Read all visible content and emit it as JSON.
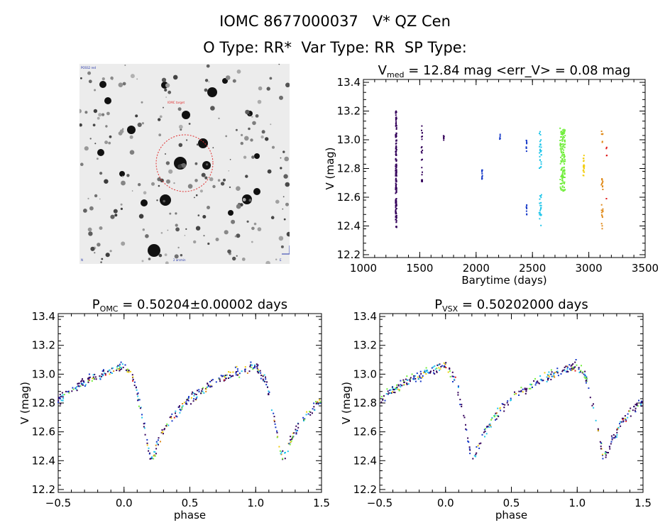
{
  "header": {
    "title": "IOMC 8677000037   V* QZ Cen",
    "subtitle": "O Type: RR*  Var Type: RR  SP Type:"
  },
  "colors": {
    "series": [
      "#33005a",
      "#1538c8",
      "#22c6ea",
      "#72ee3c",
      "#f2cd0e",
      "#e08a1a",
      "#e01c1c"
    ],
    "circle": "#e03030"
  },
  "image_panel": {
    "label_top_left": "POSS2 red",
    "label_marker": "IOMC target",
    "label_bottom_left": "N",
    "label_bottom_center": "2 arcmin",
    "label_bottom_right": "E"
  },
  "chart_data": [
    {
      "id": "lightcurve",
      "type": "scatter",
      "title_main": "V",
      "title_sub": "med",
      "title_rest": " = 12.84 mag <err_V> = 0.08 mag",
      "xlabel": "Barytime (days)",
      "ylabel": "V (mag)",
      "xlim": [
        1000,
        3500
      ],
      "ylim": [
        13.42,
        12.18
      ],
      "xticks": [
        "1000",
        "1500",
        "2000",
        "2500",
        "3000",
        "3500"
      ],
      "yticks": [
        "12.2",
        "12.4",
        "12.6",
        "12.8",
        "13.0",
        "13.2",
        "13.4"
      ],
      "groups": [
        {
          "name": "season 1",
          "color_index": 0,
          "x_range": [
            1285,
            1295
          ],
          "y_range": [
            12.38,
            13.2
          ],
          "n": 150
        },
        {
          "name": "season 2",
          "color_index": 0,
          "x_range": [
            1515,
            1525
          ],
          "y_range": [
            12.7,
            13.1
          ],
          "n": 22
        },
        {
          "name": "season 3",
          "color_index": 0,
          "x_range": [
            1710,
            1716
          ],
          "y_range": [
            12.98,
            13.03
          ],
          "n": 6
        },
        {
          "name": "season 4",
          "color_index": 1,
          "x_range": [
            2050,
            2056
          ],
          "y_range": [
            12.72,
            12.85
          ],
          "n": 10
        },
        {
          "name": "season 5",
          "color_index": 1,
          "x_range": [
            2210,
            2214
          ],
          "y_range": [
            12.97,
            13.04
          ],
          "n": 5
        },
        {
          "name": "season 6a",
          "color_index": 1,
          "x_range": [
            2445,
            2450
          ],
          "y_range": [
            12.45,
            12.55
          ],
          "n": 8
        },
        {
          "name": "season 6b",
          "color_index": 1,
          "x_range": [
            2445,
            2450
          ],
          "y_range": [
            12.92,
            13.0
          ],
          "n": 8
        },
        {
          "name": "season 7a",
          "color_index": 2,
          "x_range": [
            2560,
            2580
          ],
          "y_range": [
            12.4,
            12.62
          ],
          "n": 22
        },
        {
          "name": "season 7b",
          "color_index": 2,
          "x_range": [
            2560,
            2580
          ],
          "y_range": [
            12.8,
            13.08
          ],
          "n": 26
        },
        {
          "name": "season 8",
          "color_index": 3,
          "x_range": [
            2745,
            2790
          ],
          "y_range": [
            12.64,
            13.08
          ],
          "n": 140
        },
        {
          "name": "season 9",
          "color_index": 4,
          "x_range": [
            2950,
            2960
          ],
          "y_range": [
            12.75,
            12.9
          ],
          "n": 20
        },
        {
          "name": "season 10a",
          "color_index": 5,
          "x_range": [
            3110,
            3125
          ],
          "y_range": [
            12.38,
            12.55
          ],
          "n": 12
        },
        {
          "name": "season 10b",
          "color_index": 5,
          "x_range": [
            3110,
            3125
          ],
          "y_range": [
            12.63,
            12.75
          ],
          "n": 10
        },
        {
          "name": "season 10c",
          "color_index": 5,
          "x_range": [
            3110,
            3125
          ],
          "y_range": [
            12.97,
            13.06
          ],
          "n": 6
        },
        {
          "name": "season 11a",
          "color_index": 6,
          "x_range": [
            3155,
            3160
          ],
          "y_range": [
            12.57,
            12.6
          ],
          "n": 2
        },
        {
          "name": "season 11b",
          "color_index": 6,
          "x_range": [
            3155,
            3160
          ],
          "y_range": [
            12.88,
            12.96
          ],
          "n": 4
        }
      ]
    },
    {
      "id": "phase-omc",
      "type": "scatter",
      "title_main": "P",
      "title_sub": "OMC",
      "title_rest": " = 0.50204±0.00002 days",
      "xlabel": "phase",
      "ylabel": "V (mag)",
      "xlim": [
        -0.5,
        1.5
      ],
      "ylim": [
        13.42,
        12.18
      ],
      "xticks": [
        "−0.5",
        "0.0",
        "0.5",
        "1.0",
        "1.5"
      ],
      "yticks": [
        "12.2",
        "12.4",
        "12.6",
        "12.8",
        "13.0",
        "13.2",
        "13.4"
      ],
      "light_curve": {
        "phase": [
          0.0,
          0.08,
          0.14,
          0.18,
          0.2,
          0.23,
          0.27,
          0.35,
          0.45,
          0.55,
          0.65,
          0.75,
          0.85,
          0.95,
          1.0
        ],
        "mag": [
          13.06,
          12.95,
          12.7,
          12.5,
          12.42,
          12.45,
          12.55,
          12.68,
          12.78,
          12.86,
          12.92,
          12.97,
          13.01,
          13.04,
          13.06
        ]
      },
      "scatter": 0.05,
      "phase_shift": 0.0
    },
    {
      "id": "phase-vsx",
      "type": "scatter",
      "title_main": "P",
      "title_sub": "VSX",
      "title_rest": " = 0.50202000 days",
      "xlabel": "phase",
      "ylabel": "V (mag)",
      "xlim": [
        -0.5,
        1.5
      ],
      "ylim": [
        13.42,
        12.18
      ],
      "xticks": [
        "−0.5",
        "0.0",
        "0.5",
        "1.0",
        "1.5"
      ],
      "yticks": [
        "12.2",
        "12.4",
        "12.6",
        "12.8",
        "13.0",
        "13.2",
        "13.4"
      ],
      "light_curve": {
        "phase": [
          0.0,
          0.08,
          0.14,
          0.18,
          0.2,
          0.23,
          0.27,
          0.35,
          0.45,
          0.55,
          0.65,
          0.75,
          0.85,
          0.95,
          1.0
        ],
        "mag": [
          13.06,
          12.95,
          12.7,
          12.5,
          12.42,
          12.45,
          12.55,
          12.68,
          12.78,
          12.86,
          12.92,
          12.97,
          13.01,
          13.04,
          13.06
        ]
      },
      "scatter": 0.05,
      "phase_shift": 0.0
    }
  ]
}
